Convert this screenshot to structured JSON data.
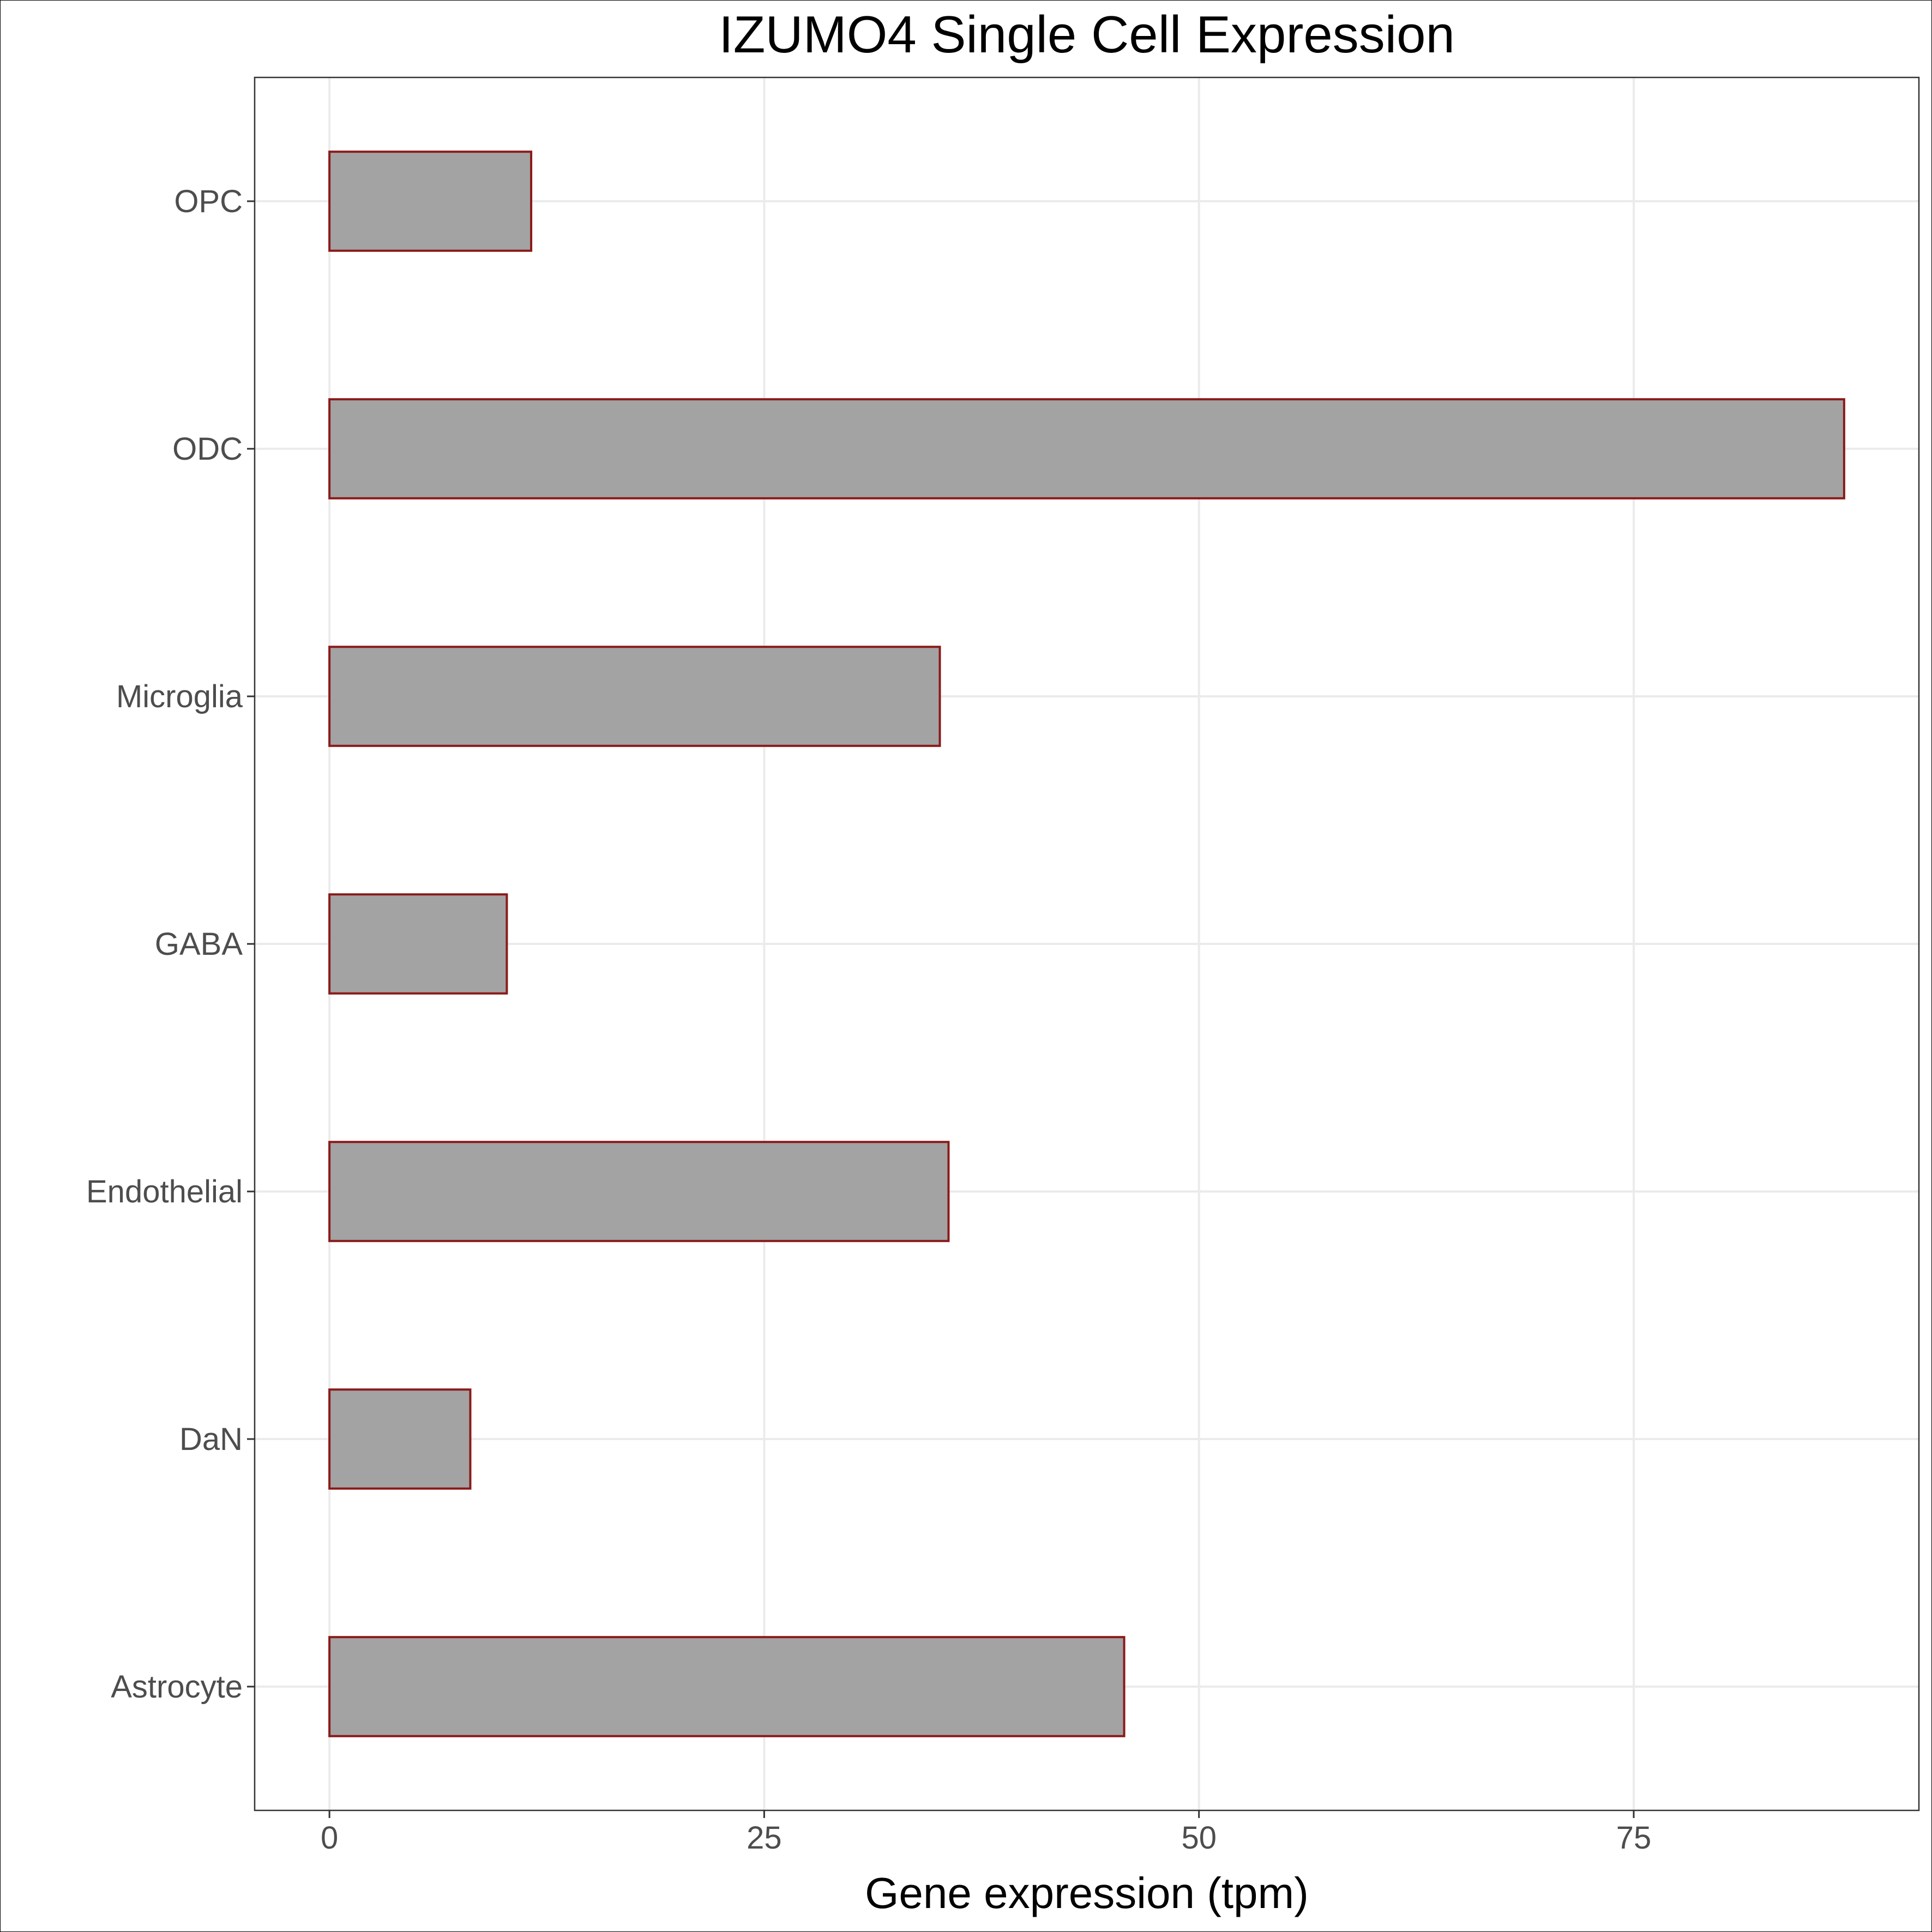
{
  "chart_data": {
    "type": "bar",
    "orientation": "horizontal",
    "title": "IZUMO4 Single Cell Expression",
    "xlabel": "Gene expression (tpm)",
    "ylabel": "",
    "categories": [
      "Astrocyte",
      "DaN",
      "Endothelial",
      "GABA",
      "Microglia",
      "ODC",
      "OPC"
    ],
    "values": [
      45.7,
      8.1,
      35.6,
      10.2,
      35.1,
      87.1,
      11.6
    ],
    "xlim": [
      -4.3,
      91.4
    ],
    "xticks": [
      0,
      25,
      50,
      75
    ],
    "xtick_labels": [
      "0",
      "25",
      "50",
      "75"
    ],
    "grid": true,
    "legend": "none",
    "colors": {
      "bar_fill": "#a3a3a3",
      "bar_stroke": "#8b1a1a",
      "grid": "#ebebeb",
      "panel_border": "#333333"
    }
  }
}
